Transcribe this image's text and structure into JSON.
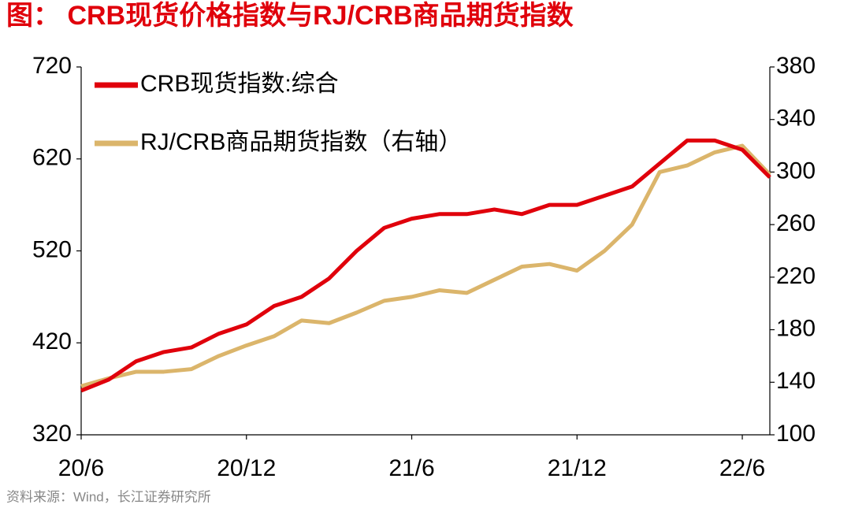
{
  "chart_data": {
    "type": "line",
    "title": "图：  CRB现货价格指数与RJ/CRB商品期货指数",
    "source": "资料来源：Wind，长江证券研究所",
    "x": [
      "2020-06",
      "2020-07",
      "2020-08",
      "2020-09",
      "2020-10",
      "2020-11",
      "2020-12",
      "2021-01",
      "2021-02",
      "2021-03",
      "2021-04",
      "2021-05",
      "2021-06",
      "2021-07",
      "2021-08",
      "2021-09",
      "2021-10",
      "2021-11",
      "2021-12",
      "2022-01",
      "2022-02",
      "2022-03",
      "2022-04",
      "2022-05",
      "2022-06",
      "2022-07"
    ],
    "xlim": [
      "2020-06",
      "2022-07"
    ],
    "xticks": [
      {
        "value": "2020-06",
        "label": "20/6"
      },
      {
        "value": "2020-12",
        "label": "20/12"
      },
      {
        "value": "2021-06",
        "label": "21/6"
      },
      {
        "value": "2021-12",
        "label": "21/12"
      },
      {
        "value": "2022-06",
        "label": "22/6"
      }
    ],
    "ylim": [
      320,
      720
    ],
    "yticks": [
      320,
      420,
      520,
      620,
      720
    ],
    "y2lim": [
      100,
      380
    ],
    "y2ticks": [
      100,
      140,
      180,
      220,
      260,
      300,
      340,
      380
    ],
    "grid": false,
    "legend": "upper left",
    "series": [
      {
        "name": "CRB现货指数:综合",
        "color": "#e0000b",
        "values": [
          368,
          380,
          400,
          410,
          415,
          430,
          440,
          460,
          470,
          490,
          520,
          545,
          555,
          560,
          560,
          565,
          560,
          570,
          570,
          580,
          590,
          615,
          640,
          640,
          630,
          600
        ]
      },
      {
        "name": "RJ/CRB商品期货指数（右轴）",
        "color": "#dbb56b",
        "axis": "y2",
        "values": [
          137,
          143,
          148,
          148,
          150,
          160,
          168,
          175,
          187,
          185,
          193,
          202,
          205,
          210,
          208,
          218,
          228,
          230,
          225,
          240,
          260,
          300,
          305,
          315,
          320,
          298
        ]
      }
    ]
  }
}
